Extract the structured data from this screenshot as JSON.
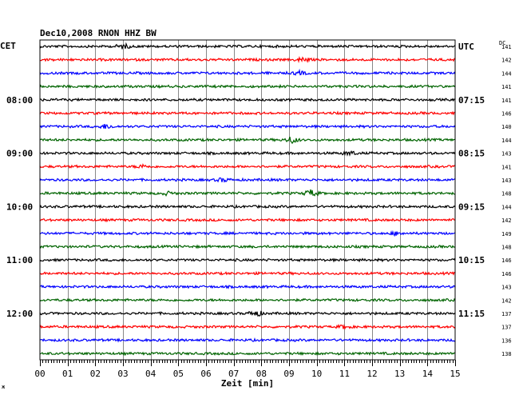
{
  "header": {
    "title": "Dec10,2008   RNON HHZ BW",
    "left_zone": "CET",
    "right_zone": "UTC",
    "dc_label": "DC",
    "footnote": "ж"
  },
  "chart_data": {
    "type": "line",
    "title": "Dec10,2008   RNON HHZ BW",
    "xlabel": "Zeit [min]",
    "ylabel": "",
    "xlim": [
      0,
      15
    ],
    "x_ticks": [
      "00",
      "01",
      "02",
      "03",
      "04",
      "05",
      "06",
      "07",
      "08",
      "09",
      "10",
      "11",
      "12",
      "13",
      "14",
      "15"
    ],
    "grid": true,
    "trace_colors": [
      "#000000",
      "#ff0000",
      "#0000ff",
      "#006400"
    ],
    "left_time_labels": [
      {
        "trace": 4,
        "label": "08:00"
      },
      {
        "trace": 8,
        "label": "09:00"
      },
      {
        "trace": 12,
        "label": "10:00"
      },
      {
        "trace": 16,
        "label": "11:00"
      },
      {
        "trace": 20,
        "label": "12:00"
      }
    ],
    "right_time_labels": [
      {
        "trace": 0,
        "label": "UTC"
      },
      {
        "trace": 4,
        "label": "07:15"
      },
      {
        "trace": 8,
        "label": "08:15"
      },
      {
        "trace": 12,
        "label": "09:15"
      },
      {
        "trace": 16,
        "label": "10:15"
      },
      {
        "trace": 20,
        "label": "11:15"
      }
    ],
    "dc_values": [
      "141",
      "142",
      "144",
      "141",
      "141",
      "146",
      "140",
      "144",
      "143",
      "141",
      "143",
      "148",
      "144",
      "142",
      "149",
      "148",
      "146",
      "146",
      "143",
      "142",
      "137",
      "137",
      "136",
      "138"
    ],
    "events": [
      {
        "trace": 0,
        "minute": 3.0,
        "amp": 2.5
      },
      {
        "trace": 1,
        "minute": 9.5,
        "amp": 2.5
      },
      {
        "trace": 2,
        "minute": 9.4,
        "amp": 1.8
      },
      {
        "trace": 6,
        "minute": 2.4,
        "amp": 2.5
      },
      {
        "trace": 7,
        "minute": 9.1,
        "amp": 3.5
      },
      {
        "trace": 8,
        "minute": 11.2,
        "amp": 2.0
      },
      {
        "trace": 9,
        "minute": 3.7,
        "amp": 1.8
      },
      {
        "trace": 10,
        "minute": 6.6,
        "amp": 1.8
      },
      {
        "trace": 11,
        "minute": 9.8,
        "amp": 3.8
      },
      {
        "trace": 11,
        "minute": 4.6,
        "amp": 1.6
      },
      {
        "trace": 14,
        "minute": 12.9,
        "amp": 1.8
      },
      {
        "trace": 20,
        "minute": 7.8,
        "amp": 3.2
      },
      {
        "trace": 21,
        "minute": 11.0,
        "amp": 1.7
      }
    ]
  }
}
